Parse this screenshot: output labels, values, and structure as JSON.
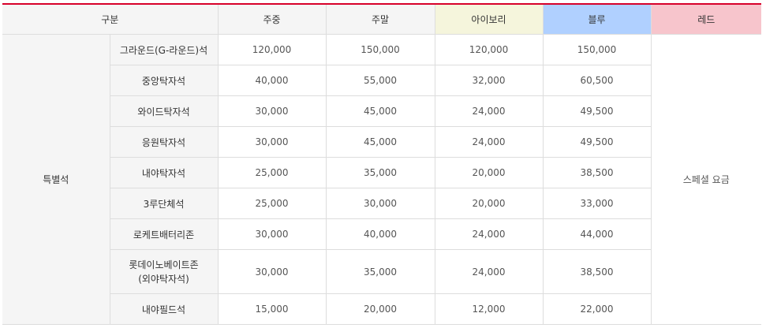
{
  "header": {
    "category": "구분",
    "weekday": "주중",
    "weekend": "주말",
    "ivory": "아이보리",
    "blue": "블루",
    "red": "레드"
  },
  "colors": {
    "top_border": "#d7002a",
    "ivory": "#f5f5dc",
    "blue": "#b0d0ff",
    "red": "#f7c5cc"
  },
  "group": "특별석",
  "red_note": "스페셜 요금",
  "rows": [
    {
      "name": "그라운드(G-라운드)석",
      "name2": "",
      "weekday": "120,000",
      "weekend": "150,000",
      "ivory": "120,000",
      "blue": "150,000"
    },
    {
      "name": "중앙탁자석",
      "name2": "",
      "weekday": "40,000",
      "weekend": "55,000",
      "ivory": "32,000",
      "blue": "60,500"
    },
    {
      "name": "와이드탁자석",
      "name2": "",
      "weekday": "30,000",
      "weekend": "45,000",
      "ivory": "24,000",
      "blue": "49,500"
    },
    {
      "name": "응원탁자석",
      "name2": "",
      "weekday": "30,000",
      "weekend": "45,000",
      "ivory": "24,000",
      "blue": "49,500"
    },
    {
      "name": "내야탁자석",
      "name2": "",
      "weekday": "25,000",
      "weekend": "35,000",
      "ivory": "20,000",
      "blue": "38,500"
    },
    {
      "name": "3루단체석",
      "name2": "",
      "weekday": "25,000",
      "weekend": "30,000",
      "ivory": "20,000",
      "blue": "33,000"
    },
    {
      "name": "로케트배터리존",
      "name2": "",
      "weekday": "30,000",
      "weekend": "40,000",
      "ivory": "24,000",
      "blue": "44,000"
    },
    {
      "name": "롯데이노베이트존",
      "name2": "(외야탁자석)",
      "weekday": "30,000",
      "weekend": "35,000",
      "ivory": "24,000",
      "blue": "38,500"
    },
    {
      "name": "내야필드석",
      "name2": "",
      "weekday": "15,000",
      "weekend": "20,000",
      "ivory": "12,000",
      "blue": "22,000"
    }
  ]
}
